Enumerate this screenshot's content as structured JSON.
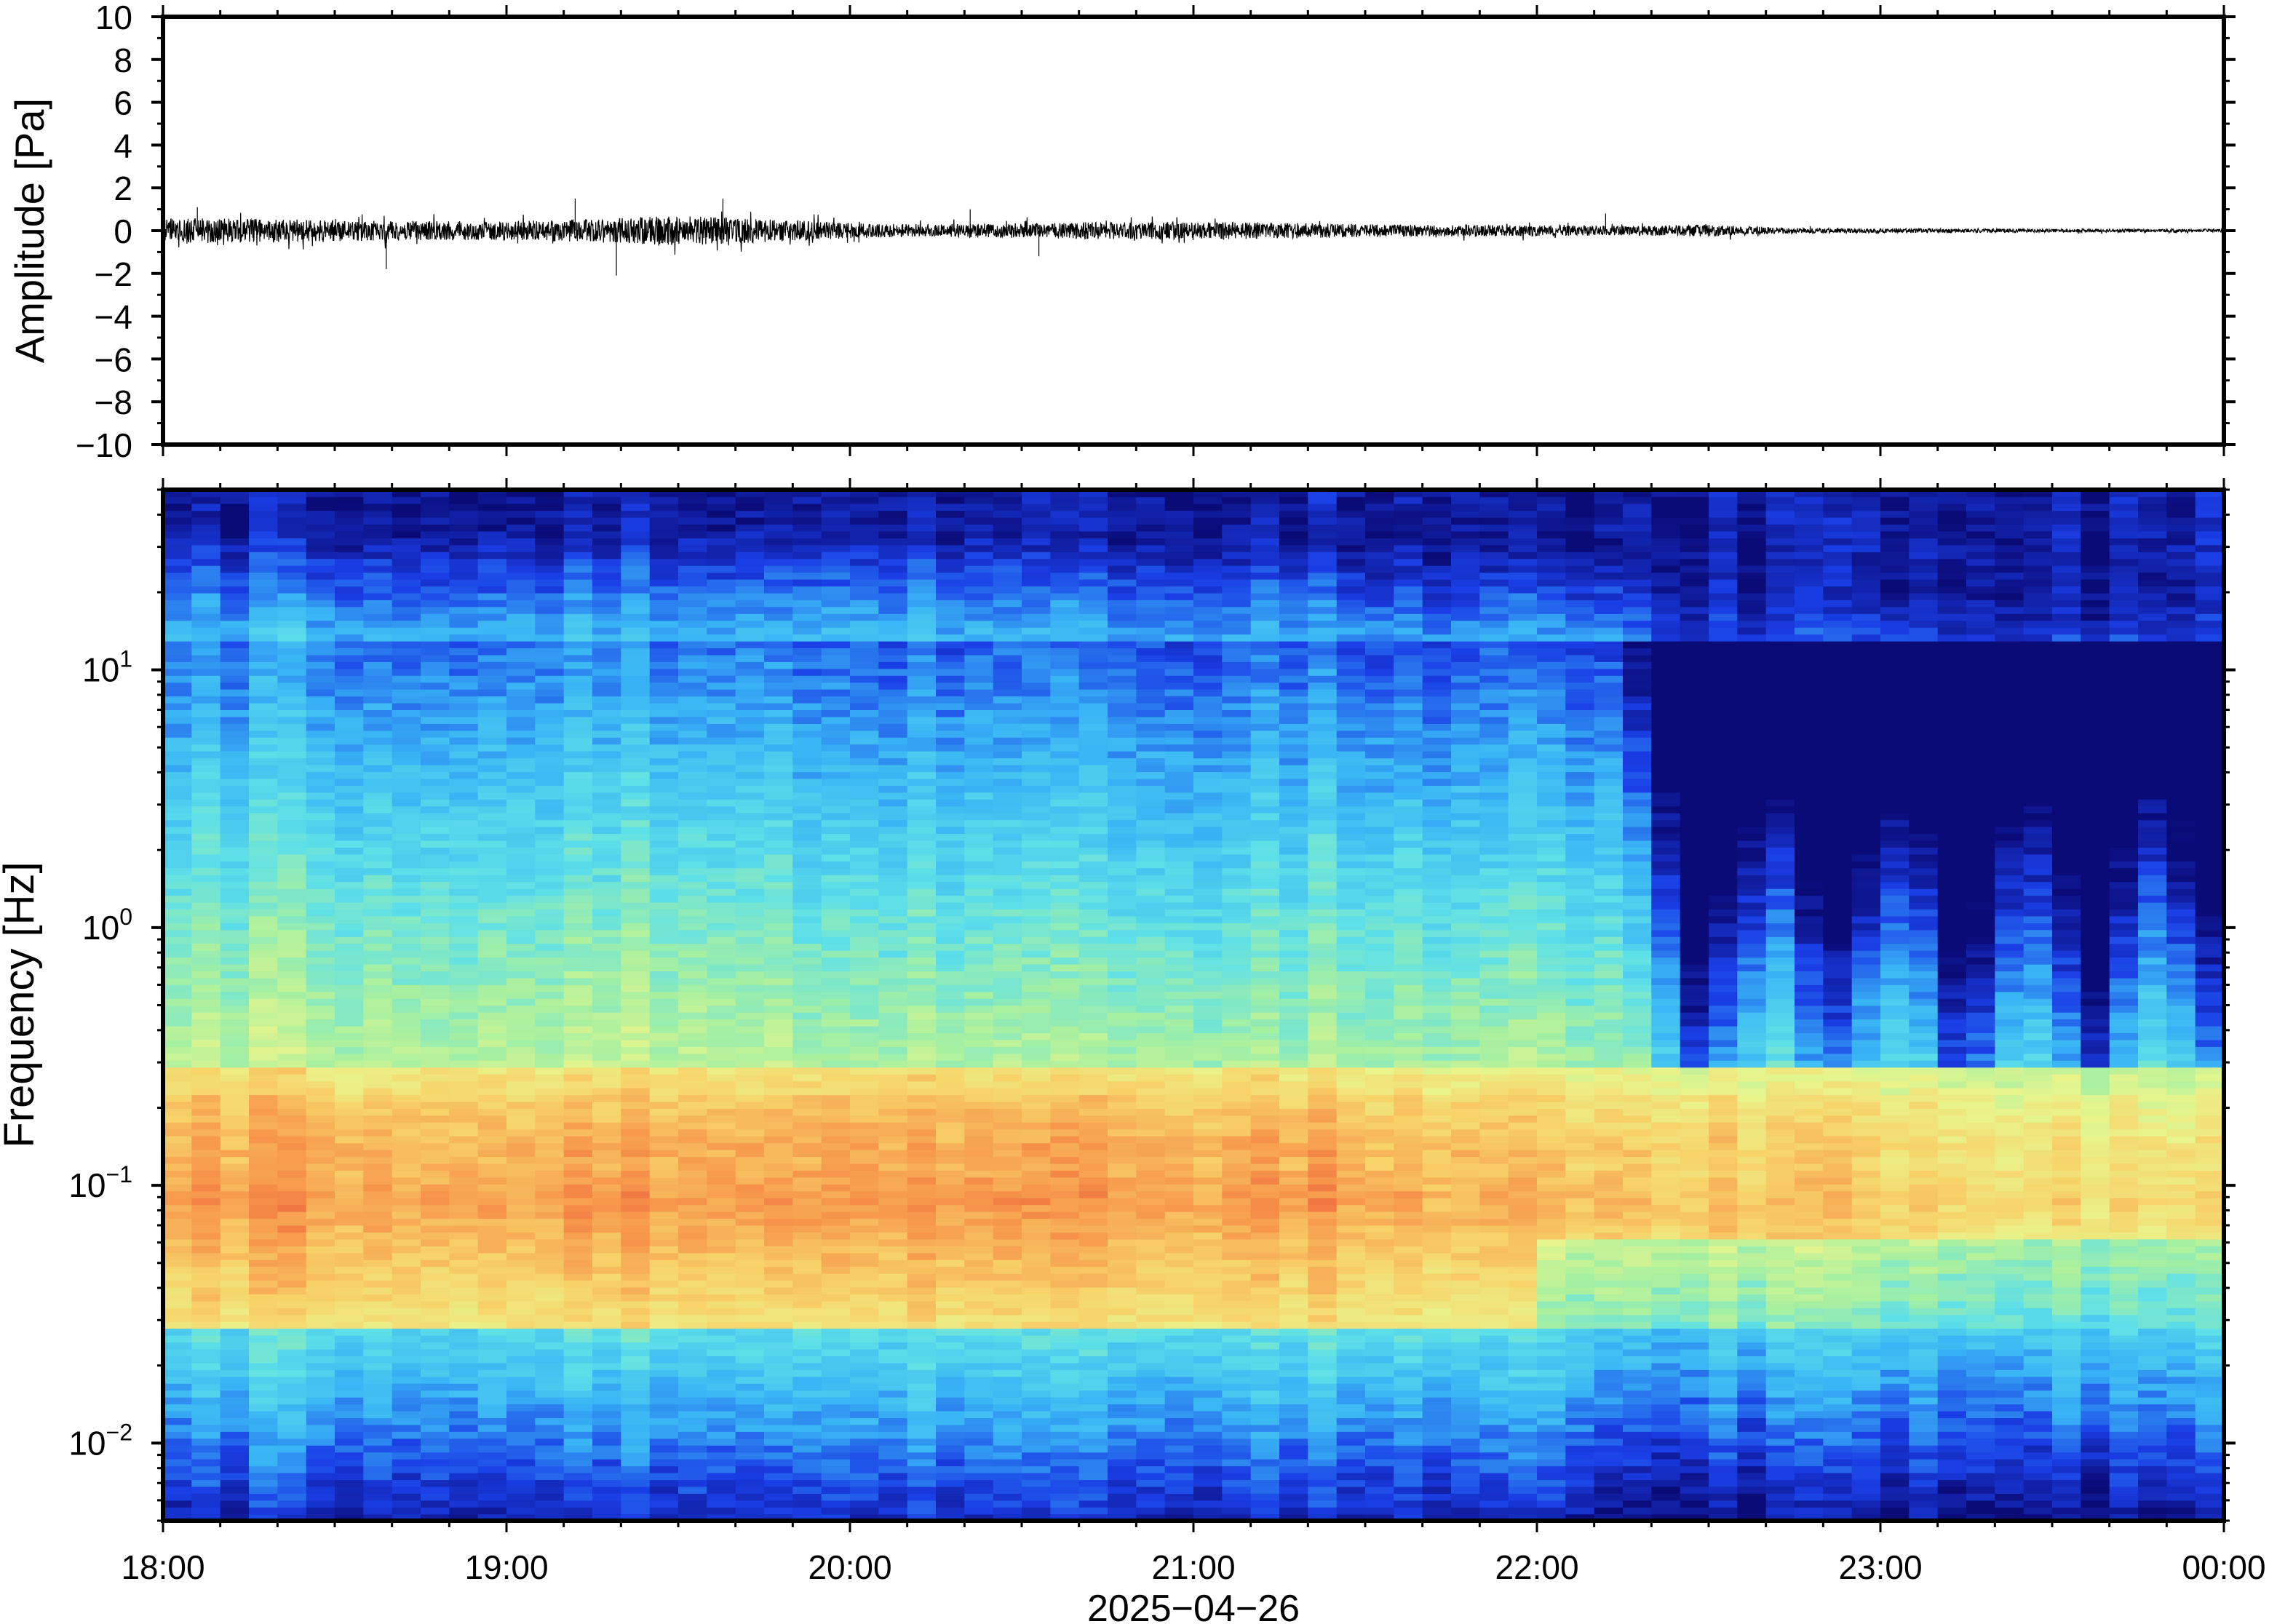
{
  "chart_data": [
    {
      "type": "line",
      "title": "",
      "ylabel": "Amplitude [Pa]",
      "ylim": [
        -10,
        10
      ],
      "yticks": [
        "10",
        "8",
        "6",
        "4",
        "2",
        "0",
        "−2",
        "−4",
        "−6",
        "−8",
        "−10"
      ],
      "x_range": [
        "18:00",
        "00:00"
      ],
      "grid": false,
      "series": [
        {
          "time_hours": [
            0,
            0.25,
            0.5,
            0.75,
            1.0,
            1.25,
            1.5,
            1.75,
            2.0,
            2.25,
            2.5,
            2.75,
            3.0,
            3.25,
            3.5,
            3.75,
            4.0,
            4.25,
            4.5,
            4.75,
            5.0,
            5.25,
            5.5,
            5.75,
            6.0
          ],
          "envelope_pa": [
            0.6,
            0.55,
            0.5,
            0.45,
            0.45,
            0.55,
            0.7,
            0.55,
            0.35,
            0.3,
            0.35,
            0.4,
            0.4,
            0.38,
            0.3,
            0.28,
            0.25,
            0.22,
            0.28,
            0.12,
            0.1,
            0.1,
            0.08,
            0.08,
            0.08
          ],
          "peaks_pa": [
            {
              "t": 0.1,
              "v": 1.1
            },
            {
              "t": 0.65,
              "v": -1.8
            },
            {
              "t": 1.2,
              "v": 1.5
            },
            {
              "t": 1.32,
              "v": -2.1
            },
            {
              "t": 1.63,
              "v": 1.5
            },
            {
              "t": 2.35,
              "v": 1.0
            },
            {
              "t": 2.55,
              "v": -1.2
            },
            {
              "t": 4.2,
              "v": 0.8
            }
          ]
        }
      ]
    },
    {
      "type": "heatmap",
      "title": "",
      "ylabel": "Frequency [Hz]",
      "xlabel": "2025−04−26",
      "yscale": "log",
      "ylim": [
        0.005,
        50
      ],
      "yticks": [
        {
          "value": 0.01,
          "base": "10",
          "exp": "−2"
        },
        {
          "value": 0.1,
          "base": "10",
          "exp": "−1"
        },
        {
          "value": 1,
          "base": "10",
          "exp": "0"
        },
        {
          "value": 10,
          "base": "10",
          "exp": "1"
        }
      ],
      "xticks": [
        "18:00",
        "19:00",
        "20:00",
        "21:00",
        "22:00",
        "23:00",
        "00:00"
      ],
      "x_range": [
        "18:00",
        "00:00"
      ],
      "colormap": "jet",
      "colors": [
        "#0b0b78",
        "#1a3ee6",
        "#39b4f5",
        "#5ee0e8",
        "#a8f0a0",
        "#e8f58c",
        "#f7d36a",
        "#f79a4c",
        "#ec5a3a"
      ],
      "note_values": "relative power 0 (low) to 1 (high); columns every 5 min, rows log-spaced",
      "grid": false
    }
  ]
}
